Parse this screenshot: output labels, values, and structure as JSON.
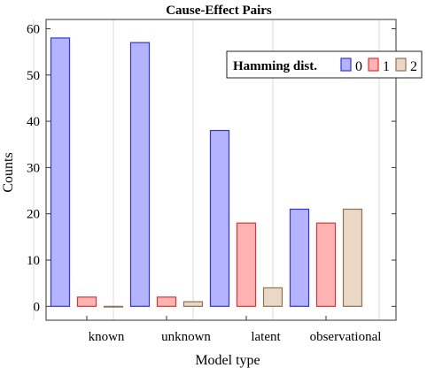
{
  "chart_data": {
    "type": "bar",
    "title": "Cause-Effect Pairs",
    "xlabel": "Model type",
    "ylabel": "Counts",
    "categories": [
      "known",
      "unknown",
      "latent",
      "observational"
    ],
    "ylim": [
      -3,
      62
    ],
    "yticks": [
      0,
      10,
      20,
      30,
      40,
      50,
      60
    ],
    "grid": "vertical",
    "legend": {
      "title": "Hamming dist.",
      "placement": "top-right"
    },
    "series": [
      {
        "name": "0",
        "values": [
          58,
          57,
          38,
          21
        ],
        "fill": "#b3b3ff",
        "stroke": "#3333e0"
      },
      {
        "name": "1",
        "values": [
          2,
          2,
          18,
          18
        ],
        "fill": "#ffb3b3",
        "stroke": "#e03333"
      },
      {
        "name": "2",
        "values": [
          0,
          1,
          4,
          21
        ],
        "fill": "#ead7c5",
        "stroke": "#8b7355"
      }
    ]
  }
}
